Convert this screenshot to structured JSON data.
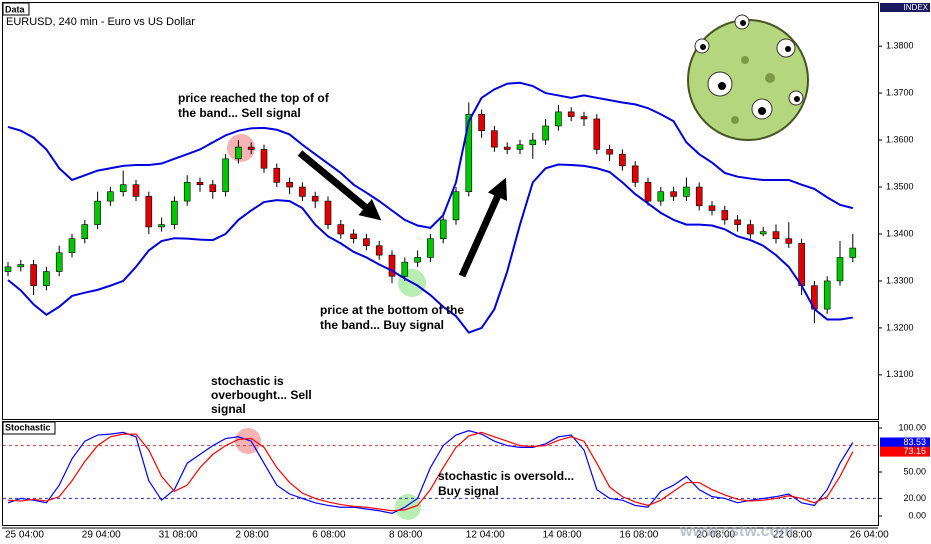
{
  "chart_data": [
    {
      "type": "candlestick",
      "label": "Data",
      "title": "EURUSD, 240 min - Euro vs US Dollar",
      "axis_label": "INDEX",
      "up_color": "#00c800",
      "down_color": "#e00000",
      "ylim": [
        1.3006,
        1.3894
      ],
      "yticks": [
        {
          "value": 1.38,
          "label": "1.3800"
        },
        {
          "value": 1.37,
          "label": "1.3700"
        },
        {
          "value": 1.36,
          "label": "1.3600"
        },
        {
          "value": 1.35,
          "label": "1.3500"
        },
        {
          "value": 1.34,
          "label": "1.3400"
        },
        {
          "value": 1.33,
          "label": "1.3300"
        },
        {
          "value": 1.32,
          "label": "1.3200"
        },
        {
          "value": 1.31,
          "label": "1.3100"
        }
      ],
      "open": [
        1.332,
        1.333,
        1.3335,
        1.329,
        1.332,
        1.336,
        1.339,
        1.342,
        1.347,
        1.349,
        1.3505,
        1.348,
        1.3415,
        1.342,
        1.347,
        1.351,
        1.3505,
        1.349,
        1.356,
        1.3585,
        1.358,
        1.354,
        1.351,
        1.35,
        1.348,
        1.347,
        1.342,
        1.34,
        1.339,
        1.3375,
        1.3355,
        1.331,
        1.334,
        1.335,
        1.339,
        1.343,
        1.349,
        1.3655,
        1.362,
        1.3585,
        1.358,
        1.359,
        1.36,
        1.363,
        1.366,
        1.365,
        1.3645,
        1.358,
        1.357,
        1.3545,
        1.351,
        1.347,
        1.349,
        1.348,
        1.35,
        1.346,
        1.345,
        1.343,
        1.342,
        1.34,
        1.3405,
        1.339,
        1.338,
        1.329,
        1.324,
        1.33,
        1.335
      ],
      "high": [
        1.334,
        1.3345,
        1.3345,
        1.333,
        1.3375,
        1.34,
        1.343,
        1.349,
        1.35,
        1.3535,
        1.3515,
        1.349,
        1.3435,
        1.348,
        1.3525,
        1.352,
        1.3515,
        1.357,
        1.36,
        1.3595,
        1.359,
        1.355,
        1.352,
        1.351,
        1.349,
        1.348,
        1.343,
        1.341,
        1.34,
        1.3385,
        1.3365,
        1.335,
        1.3365,
        1.34,
        1.3445,
        1.35,
        1.368,
        1.3665,
        1.363,
        1.3595,
        1.36,
        1.3615,
        1.3645,
        1.3675,
        1.367,
        1.366,
        1.3655,
        1.359,
        1.358,
        1.3555,
        1.352,
        1.35,
        1.35,
        1.352,
        1.351,
        1.347,
        1.346,
        1.344,
        1.343,
        1.3415,
        1.342,
        1.3425,
        1.339,
        1.33,
        1.331,
        1.3385,
        1.34
      ],
      "low": [
        1.331,
        1.332,
        1.327,
        1.328,
        1.331,
        1.335,
        1.338,
        1.341,
        1.346,
        1.348,
        1.347,
        1.34,
        1.3405,
        1.341,
        1.346,
        1.349,
        1.3475,
        1.348,
        1.355,
        1.357,
        1.353,
        1.35,
        1.3485,
        1.347,
        1.3455,
        1.341,
        1.339,
        1.338,
        1.3365,
        1.3345,
        1.3295,
        1.33,
        1.333,
        1.334,
        1.338,
        1.342,
        1.348,
        1.3605,
        1.3575,
        1.357,
        1.357,
        1.356,
        1.359,
        1.362,
        1.364,
        1.363,
        1.357,
        1.3555,
        1.3535,
        1.35,
        1.346,
        1.346,
        1.347,
        1.347,
        1.345,
        1.344,
        1.342,
        1.3405,
        1.339,
        1.3395,
        1.338,
        1.337,
        1.327,
        1.321,
        1.323,
        1.329,
        1.334
      ],
      "close": [
        1.333,
        1.3335,
        1.329,
        1.332,
        1.336,
        1.339,
        1.342,
        1.347,
        1.349,
        1.3505,
        1.348,
        1.3415,
        1.342,
        1.347,
        1.351,
        1.3505,
        1.349,
        1.356,
        1.3585,
        1.358,
        1.354,
        1.351,
        1.35,
        1.348,
        1.347,
        1.342,
        1.34,
        1.339,
        1.3375,
        1.3355,
        1.331,
        1.334,
        1.335,
        1.339,
        1.343,
        1.349,
        1.3655,
        1.362,
        1.3585,
        1.358,
        1.359,
        1.36,
        1.363,
        1.366,
        1.365,
        1.3645,
        1.358,
        1.357,
        1.3545,
        1.351,
        1.347,
        1.349,
        1.348,
        1.35,
        1.346,
        1.345,
        1.343,
        1.342,
        1.34,
        1.3405,
        1.339,
        1.338,
        1.329,
        1.324,
        1.33,
        1.335,
        1.337
      ],
      "lines": [
        {
          "color": "#0000dd",
          "values": [
            1.3628,
            1.362,
            1.3605,
            1.358,
            1.354,
            1.3515,
            1.3525,
            1.3535,
            1.354,
            1.3545,
            1.3547,
            1.3547,
            1.355,
            1.356,
            1.357,
            1.358,
            1.3595,
            1.361,
            1.362,
            1.3625,
            1.3626,
            1.3622,
            1.3612,
            1.359,
            1.357,
            1.355,
            1.353,
            1.3505,
            1.3488,
            1.347,
            1.345,
            1.343,
            1.3418,
            1.3413,
            1.344,
            1.351,
            1.364,
            1.369,
            1.3708,
            1.372,
            1.3722,
            1.3715,
            1.37,
            1.3695,
            1.369,
            1.3695,
            1.369,
            1.3685,
            1.368,
            1.3676,
            1.3668,
            1.3655,
            1.364,
            1.3595,
            1.357,
            1.3552,
            1.353,
            1.3522,
            1.3518,
            1.3515,
            1.3515,
            1.3515,
            1.3505,
            1.3496,
            1.3478,
            1.3462,
            1.3455
          ]
        },
        {
          "color": "#0000dd",
          "values": [
            1.3302,
            1.328,
            1.325,
            1.3228,
            1.3245,
            1.3268,
            1.3275,
            1.3281,
            1.329,
            1.33,
            1.333,
            1.3365,
            1.3385,
            1.3391,
            1.339,
            1.3388,
            1.3387,
            1.34,
            1.343,
            1.345,
            1.3468,
            1.3472,
            1.347,
            1.3455,
            1.342,
            1.3395,
            1.338,
            1.3362,
            1.335,
            1.3335,
            1.3322,
            1.3305,
            1.329,
            1.327,
            1.3245,
            1.3225,
            1.319,
            1.32,
            1.324,
            1.332,
            1.342,
            1.351,
            1.354,
            1.3548,
            1.3547,
            1.3545,
            1.354,
            1.3532,
            1.351,
            1.3485,
            1.3465,
            1.3445,
            1.343,
            1.342,
            1.342,
            1.3418,
            1.341,
            1.3395,
            1.3387,
            1.3375,
            1.3355,
            1.333,
            1.329,
            1.324,
            1.3218,
            1.3218,
            1.3222
          ]
        }
      ],
      "annotations": [
        [
          "price reached the top of of",
          "the band... Sell signal"
        ],
        [
          "price at the bottom of the",
          "the band... Buy signal"
        ],
        [
          "stochastic is",
          "overbought... Sell",
          "signal"
        ]
      ]
    },
    {
      "type": "line",
      "title": "Stochastic",
      "categories": [
        "25 04:00",
        null,
        null,
        null,
        null,
        null,
        "29 04:00",
        null,
        null,
        null,
        null,
        null,
        "31 08:00",
        null,
        null,
        null,
        null,
        null,
        "2 08:00",
        null,
        null,
        null,
        null,
        null,
        "6 08:00",
        null,
        null,
        null,
        null,
        null,
        "8 08:00",
        null,
        null,
        null,
        null,
        null,
        "12 04:00",
        null,
        null,
        null,
        null,
        null,
        "14 08:00",
        null,
        null,
        null,
        null,
        null,
        "16 08:00",
        null,
        null,
        null,
        null,
        null,
        "20 08:00",
        null,
        null,
        null,
        null,
        null,
        "22 08:00",
        null,
        null,
        null,
        null,
        null,
        "26 04:00"
      ],
      "ylim": [
        -10.2,
        106.8
      ],
      "yticks": [
        {
          "value": 100,
          "label": "100.00"
        },
        {
          "value": 50,
          "label": "50.00"
        },
        {
          "value": 20,
          "label": "20.00"
        },
        {
          "value": 0,
          "label": "0.00"
        }
      ],
      "levels": [
        {
          "value": 80,
          "color": "#d04040"
        },
        {
          "value": 20,
          "color": "#3030c0"
        }
      ],
      "series": [
        {
          "color": "#0000ff",
          "values": [
            15,
            20,
            18,
            15,
            35,
            65,
            85,
            92,
            93,
            95,
            90,
            40,
            18,
            30,
            60,
            70,
            80,
            88,
            90,
            85,
            60,
            35,
            25,
            20,
            15,
            12,
            10,
            10,
            8,
            6,
            3,
            10,
            20,
            55,
            80,
            92,
            97,
            93,
            85,
            80,
            78,
            78,
            82,
            90,
            92,
            75,
            30,
            20,
            18,
            12,
            10,
            28,
            35,
            45,
            30,
            22,
            20,
            15,
            18,
            20,
            22,
            25,
            15,
            12,
            30,
            60,
            83.53
          ]
        },
        {
          "color": "#ff0000",
          "values": [
            18,
            17,
            19,
            17,
            22,
            40,
            62,
            80,
            90,
            93,
            93,
            75,
            45,
            28,
            35,
            55,
            70,
            80,
            87,
            88,
            78,
            55,
            38,
            26,
            20,
            16,
            13,
            11,
            10,
            8,
            6,
            7,
            12,
            30,
            55,
            78,
            91,
            95,
            90,
            85,
            80,
            79,
            80,
            86,
            90,
            85,
            60,
            33,
            22,
            16,
            12,
            18,
            28,
            38,
            38,
            30,
            24,
            19,
            17,
            18,
            20,
            23,
            20,
            15,
            22,
            45,
            73.15
          ]
        }
      ],
      "annotations": [
        [
          "stochastic is oversold...",
          "Buy signal"
        ]
      ]
    },
    {
      "type": "text",
      "watermark": "www.cstw.com"
    }
  ]
}
